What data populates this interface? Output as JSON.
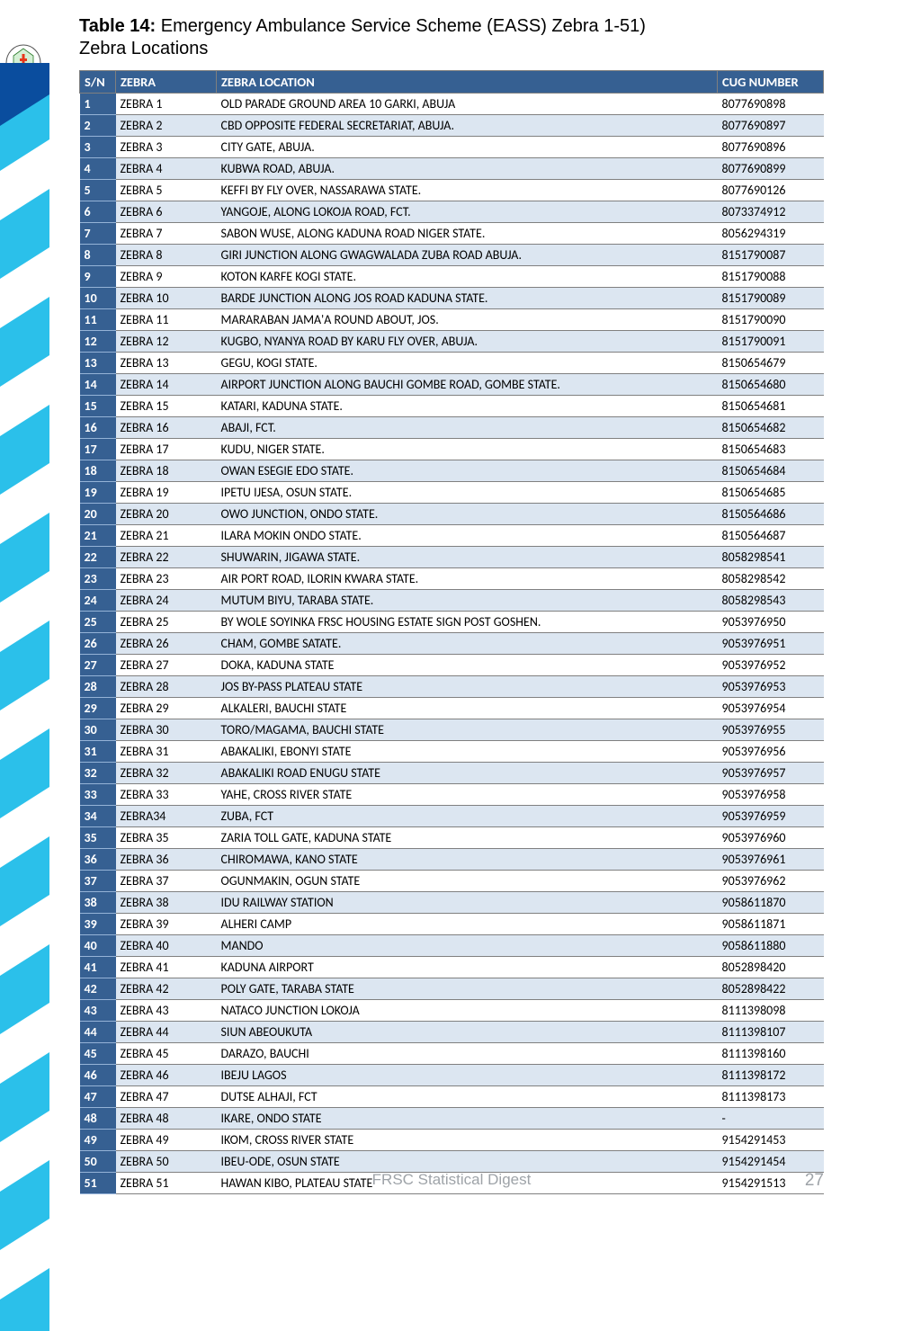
{
  "title": {
    "label": "Table 14:",
    "text1": "  Emergency Ambulance Service Scheme (EASS) Zebra 1-51)",
    "text2": "Zebra Locations"
  },
  "table": {
    "headers": {
      "sn": "S/N",
      "zebra": "ZEBRA",
      "location": "ZEBRA LOCATION",
      "cug": "CUG NUMBER"
    },
    "rows": [
      {
        "sn": "1",
        "zebra": "ZEBRA 1",
        "loc": "OLD PARADE GROUND AREA 10 GARKI, ABUJA",
        "cug": "8077690898"
      },
      {
        "sn": "2",
        "zebra": "ZEBRA 2",
        "loc": "CBD OPPOSITE FEDERAL SECRETARIAT, ABUJA.",
        "cug": "8077690897"
      },
      {
        "sn": "3",
        "zebra": "ZEBRA 3",
        "loc": " CITY GATE, ABUJA.",
        "cug": "8077690896"
      },
      {
        "sn": "4",
        "zebra": "ZEBRA 4",
        "loc": "KUBWA ROAD, ABUJA.",
        "cug": "8077690899"
      },
      {
        "sn": "5",
        "zebra": "ZEBRA 5",
        "loc": "KEFFI BY FLY OVER, NASSARAWA STATE.",
        "cug": "8077690126"
      },
      {
        "sn": "6",
        "zebra": "ZEBRA 6",
        "loc": "YANGOJE, ALONG LOKOJA ROAD, FCT.",
        "cug": "8073374912"
      },
      {
        "sn": "7",
        "zebra": "ZEBRA 7",
        "loc": "SABON WUSE, ALONG KADUNA ROAD NIGER STATE.",
        "cug": "8056294319"
      },
      {
        "sn": "8",
        "zebra": "ZEBRA 8",
        "loc": "GIRI JUNCTION ALONG GWAGWALADA ZUBA ROAD ABUJA.",
        "cug": "8151790087"
      },
      {
        "sn": "9",
        "zebra": "ZEBRA 9",
        "loc": "KOTON KARFE KOGI STATE.",
        "cug": "8151790088"
      },
      {
        "sn": "10",
        "zebra": "ZEBRA 10",
        "loc": "BARDE JUNCTION ALONG JOS ROAD KADUNA STATE.",
        "cug": "8151790089"
      },
      {
        "sn": "11",
        "zebra": "ZEBRA 11",
        "loc": "MARARABAN JAMA'A ROUND ABOUT, JOS.",
        "cug": "8151790090"
      },
      {
        "sn": "12",
        "zebra": "ZEBRA 12",
        "loc": "KUGBO, NYANYA ROAD BY KARU FLY OVER, ABUJA.",
        "cug": "8151790091"
      },
      {
        "sn": "13",
        "zebra": "ZEBRA 13",
        "loc": "GEGU, KOGI STATE.",
        "cug": "8150654679"
      },
      {
        "sn": "14",
        "zebra": "ZEBRA 14",
        "loc": "AIRPORT JUNCTION ALONG BAUCHI GOMBE ROAD, GOMBE STATE.",
        "cug": "8150654680"
      },
      {
        "sn": "15",
        "zebra": "ZEBRA 15",
        "loc": "KATARI, KADUNA STATE.",
        "cug": "8150654681"
      },
      {
        "sn": "16",
        "zebra": "ZEBRA 16",
        "loc": "ABAJI, FCT.",
        "cug": "8150654682"
      },
      {
        "sn": "17",
        "zebra": "ZEBRA 17",
        "loc": "KUDU, NIGER STATE.",
        "cug": "8150654683"
      },
      {
        "sn": "18",
        "zebra": "ZEBRA 18",
        "loc": "OWAN ESEGIE EDO STATE.",
        "cug": "8150654684"
      },
      {
        "sn": "19",
        "zebra": "ZEBRA 19",
        "loc": "IPETU IJESA, OSUN STATE.",
        "cug": "8150654685"
      },
      {
        "sn": "20",
        "zebra": "ZEBRA 20",
        "loc": "OWO JUNCTION, ONDO STATE.",
        "cug": "8150564686"
      },
      {
        "sn": "21",
        "zebra": "ZEBRA 21",
        "loc": "ILARA MOKIN ONDO STATE.",
        "cug": "8150564687"
      },
      {
        "sn": "22",
        "zebra": "ZEBRA 22",
        "loc": "SHUWARIN, JIGAWA STATE.",
        "cug": "8058298541"
      },
      {
        "sn": "23",
        "zebra": "ZEBRA 23",
        "loc": "AIR PORT ROAD, ILORIN KWARA STATE.",
        "cug": "8058298542"
      },
      {
        "sn": "24",
        "zebra": "ZEBRA 24",
        "loc": "MUTUM BIYU, TARABA STATE.",
        "cug": "8058298543"
      },
      {
        "sn": "25",
        "zebra": "ZEBRA 25",
        "loc": "BY WOLE SOYINKA FRSC HOUSING ESTATE SIGN POST GOSHEN.",
        "cug": "9053976950"
      },
      {
        "sn": "26",
        "zebra": "ZEBRA 26",
        "loc": "CHAM, GOMBE SATATE.",
        "cug": "9053976951"
      },
      {
        "sn": "27",
        "zebra": "ZEBRA 27",
        "loc": "DOKA, KADUNA STATE",
        "cug": "9053976952"
      },
      {
        "sn": "28",
        "zebra": "ZEBRA 28",
        "loc": "JOS BY-PASS  PLATEAU STATE",
        "cug": "9053976953"
      },
      {
        "sn": "29",
        "zebra": "ZEBRA 29",
        "loc": "ALKALERI, BAUCHI STATE",
        "cug": "9053976954"
      },
      {
        "sn": "30",
        "zebra": "ZEBRA 30",
        "loc": "TORO/MAGAMA, BAUCHI STATE",
        "cug": "9053976955"
      },
      {
        "sn": "31",
        "zebra": "ZEBRA 31",
        "loc": "ABAKALIKI, EBONYI STATE",
        "cug": "9053976956"
      },
      {
        "sn": "32",
        "zebra": "ZEBRA 32",
        "loc": "ABAKALIKI ROAD ENUGU STATE",
        "cug": "9053976957"
      },
      {
        "sn": "33",
        "zebra": "ZEBRA 33",
        "loc": "YAHE, CROSS RIVER STATE",
        "cug": "9053976958"
      },
      {
        "sn": "34",
        "zebra": "ZEBRA34",
        "loc": "ZUBA, FCT",
        "cug": "9053976959"
      },
      {
        "sn": "35",
        "zebra": "ZEBRA 35",
        "loc": "ZARIA TOLL GATE, KADUNA STATE",
        "cug": "9053976960"
      },
      {
        "sn": "36",
        "zebra": "ZEBRA 36",
        "loc": "CHIROMAWA, KANO STATE",
        "cug": "9053976961"
      },
      {
        "sn": "37",
        "zebra": "ZEBRA 37",
        "loc": "OGUNMAKIN, OGUN STATE",
        "cug": "9053976962"
      },
      {
        "sn": "38",
        "zebra": "ZEBRA 38",
        "loc": "IDU RAILWAY STATION",
        "cug": "9058611870"
      },
      {
        "sn": "39",
        "zebra": "ZEBRA 39",
        "loc": "ALHERI CAMP",
        "cug": "9058611871"
      },
      {
        "sn": "40",
        "zebra": "ZEBRA 40",
        "loc": "MANDO",
        "cug": "9058611880"
      },
      {
        "sn": "41",
        "zebra": "ZEBRA 41",
        "loc": "KADUNA AIRPORT",
        "cug": "8052898420"
      },
      {
        "sn": "42",
        "zebra": "ZEBRA 42",
        "loc": "POLY GATE, TARABA STATE",
        "cug": "8052898422"
      },
      {
        "sn": "43",
        "zebra": "ZEBRA 43",
        "loc": "NATACO JUNCTION LOKOJA",
        "cug": "8111398098"
      },
      {
        "sn": "44",
        "zebra": "ZEBRA 44",
        "loc": "SIUN ABEOUKUTA",
        "cug": "8111398107"
      },
      {
        "sn": "45",
        "zebra": "ZEBRA 45",
        "loc": "DARAZO, BAUCHI",
        "cug": "8111398160"
      },
      {
        "sn": "46",
        "zebra": "ZEBRA 46",
        "loc": "IBEJU LAGOS",
        "cug": "8111398172"
      },
      {
        "sn": "47",
        "zebra": "ZEBRA 47",
        "loc": "DUTSE ALHAJI, FCT",
        "cug": "8111398173"
      },
      {
        "sn": "48",
        "zebra": "ZEBRA 48",
        "loc": "IKARE, ONDO STATE",
        "cug": "-"
      },
      {
        "sn": "49",
        "zebra": "ZEBRA 49",
        "loc": "IKOM, CROSS RIVER STATE",
        "cug": "9154291453"
      },
      {
        "sn": "50",
        "zebra": "ZEBRA 50",
        "loc": "IBEU-ODE, OSUN STATE",
        "cug": "9154291454"
      },
      {
        "sn": "51",
        "zebra": "ZEBRA 51",
        "loc": "HAWAN KIBO, PLATEAU STATE",
        "cug": "9154291513"
      }
    ]
  },
  "footer": {
    "center": "FRSC Statistical Digest",
    "page": "27"
  },
  "colors": {
    "header_bg": "#366092",
    "row_even": "#dce6f1",
    "row_odd": "#ffffff",
    "stripe_cyan": "#2bc0ea",
    "stripe_blue": "#0a4d9e"
  }
}
